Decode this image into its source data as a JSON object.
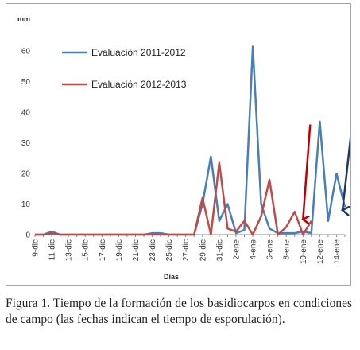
{
  "chart_data": {
    "type": "line",
    "y_unit_label": "mm",
    "xlabel": "Dias",
    "ylim": [
      0,
      65
    ],
    "y_ticks": [
      0,
      10,
      20,
      30,
      40,
      50,
      60
    ],
    "grid": false,
    "legend_position": "top-left",
    "x_tick_labels": [
      "9-dic",
      "11-dic",
      "13-dic",
      "15-dic",
      "17-dic",
      "19-dic",
      "21-dic",
      "23-dic",
      "25-dic",
      "27-dic",
      "29-dic",
      "31-dic",
      "2-ene",
      "4-ene",
      "6-ene",
      "8-ene",
      "10-ene",
      "12-ene",
      "14-ene"
    ],
    "x_days": [
      "9-dic",
      "10-dic",
      "11-dic",
      "12-dic",
      "13-dic",
      "14-dic",
      "15-dic",
      "16-dic",
      "17-dic",
      "18-dic",
      "19-dic",
      "20-dic",
      "21-dic",
      "22-dic",
      "23-dic",
      "24-dic",
      "25-dic",
      "26-dic",
      "27-dic",
      "28-dic",
      "29-dic",
      "30-dic",
      "31-dic",
      "1-ene",
      "2-ene",
      "3-ene",
      "4-ene",
      "5-ene",
      "6-ene",
      "7-ene",
      "8-ene",
      "9-ene",
      "10-ene",
      "11-ene",
      "12-ene",
      "13-ene",
      "14-ene",
      "15-ene"
    ],
    "series": [
      {
        "name": "Evaluación 2011-2012",
        "color": "#4a7ebb",
        "values": [
          0,
          0,
          1,
          0,
          0,
          0,
          0,
          0,
          0,
          0,
          0,
          0,
          0,
          0,
          0.5,
          0.5,
          0,
          0,
          0,
          0,
          10,
          25.5,
          4.5,
          10,
          0.5,
          1.5,
          61.5,
          10,
          2,
          0.5,
          0.5,
          0.5,
          1,
          0.5,
          37,
          4.5,
          20,
          9
        ]
      },
      {
        "name": "Evaluación 2012-2013",
        "color": "#be4b48",
        "values": [
          0,
          0,
          0.5,
          0,
          0,
          0,
          0,
          0,
          0,
          0,
          0,
          0,
          0,
          0,
          0,
          0,
          0,
          0,
          0,
          0,
          12,
          0,
          23.5,
          2,
          1,
          4.5,
          0,
          6,
          18,
          0,
          2.5,
          7.5,
          0,
          4.5,
          null,
          null,
          null,
          null
        ]
      }
    ],
    "annotations": [
      {
        "type": "arrow",
        "color": "#c00000",
        "from": [
          "10-ene",
          36
        ],
        "to": [
          "10-ene",
          5
        ]
      },
      {
        "type": "arrow",
        "color": "#1f3864",
        "from": [
          "15-ene",
          33.5
        ],
        "to": [
          "15-ene",
          8
        ]
      }
    ]
  },
  "caption": "Figura 1. Tiempo de la formación de los basidiocarpos en condiciones de campo (las fechas indican el tiempo de esporulación)."
}
